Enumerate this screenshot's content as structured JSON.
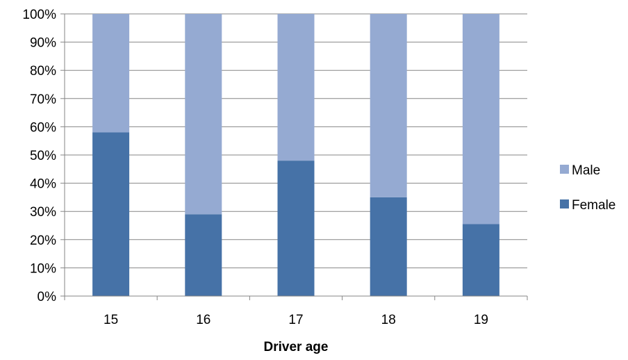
{
  "chart_data": {
    "type": "bar",
    "stacked": true,
    "title": "",
    "xlabel": "Driver age",
    "ylabel": "",
    "categories": [
      "15",
      "16",
      "17",
      "18",
      "19"
    ],
    "series": [
      {
        "name": "Female",
        "values": [
          58,
          29,
          48,
          35,
          25.5
        ],
        "color": "#4672A7"
      },
      {
        "name": "Male",
        "values": [
          42,
          71,
          52,
          65,
          74.5
        ],
        "color": "#95AAD2"
      }
    ],
    "ylim": [
      0,
      100
    ],
    "yticks": [
      "0%",
      "10%",
      "20%",
      "30%",
      "40%",
      "50%",
      "60%",
      "70%",
      "80%",
      "90%",
      "100%"
    ],
    "grid": true,
    "legend_position": "right",
    "legend_order": [
      "Male",
      "Female"
    ]
  }
}
